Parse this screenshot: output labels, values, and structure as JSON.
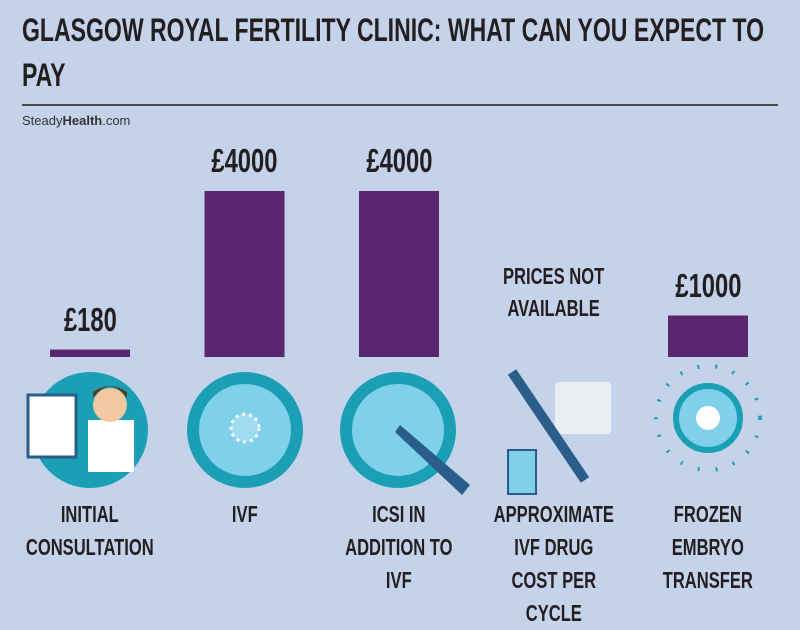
{
  "chart_data": {
    "type": "bar",
    "title": "GLASGOW ROYAL FERTILITY CLINIC: WHAT CAN YOU EXPECT TO PAY",
    "source": {
      "prefix": "Steady",
      "bold": "Health",
      "suffix": ".com"
    },
    "categories": [
      "INITIAL CONSULTATION",
      "IVF",
      "ICSI IN ADDITION TO IVF",
      "APPROXIMATE IVF DRUG COST PER CYCLE",
      "FROZEN EMBRYO TRANSFER"
    ],
    "values": [
      180,
      4000,
      4000,
      null,
      1000
    ],
    "value_labels": [
      "£180",
      "£4000",
      "£4000",
      null,
      "£1000"
    ],
    "annotation": "PRICES NOT AVAILABLE",
    "color": "#59266f"
  }
}
